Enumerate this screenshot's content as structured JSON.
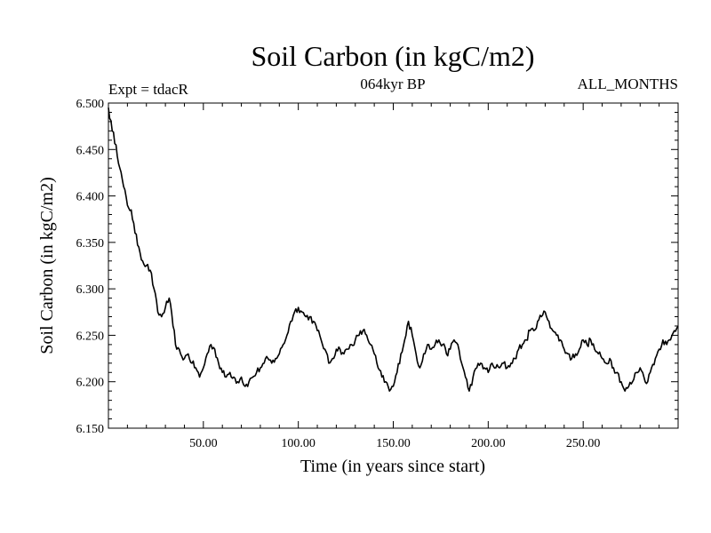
{
  "chart_data": {
    "type": "line",
    "title": "Soil Carbon (in kgC/m2)",
    "subtitle": "064kyr BP",
    "annotation_left": "Expt = tdacR",
    "annotation_right": "ALL_MONTHS",
    "xlabel": "Time (in years since start)",
    "ylabel": "Soil Carbon (in kgC/m2)",
    "xlim": [
      0,
      300
    ],
    "ylim": [
      6.15,
      6.5
    ],
    "xticks": [
      50,
      100,
      150,
      200,
      250
    ],
    "xtick_labels": [
      "50.00",
      "100.00",
      "150.00",
      "200.00",
      "250.00"
    ],
    "yticks": [
      6.15,
      6.2,
      6.25,
      6.3,
      6.35,
      6.4,
      6.45,
      6.5
    ],
    "ytick_labels": [
      "6.150",
      "6.200",
      "6.250",
      "6.300",
      "6.350",
      "6.400",
      "6.450",
      "6.500"
    ],
    "series": [
      {
        "name": "Soil Carbon",
        "color": "#000000",
        "x": [
          0,
          2,
          4,
          6,
          8,
          10,
          12,
          14,
          16,
          18,
          20,
          22,
          24,
          26,
          28,
          30,
          32,
          34,
          36,
          38,
          40,
          42,
          44,
          46,
          48,
          50,
          52,
          54,
          56,
          58,
          60,
          62,
          64,
          66,
          68,
          70,
          72,
          74,
          76,
          78,
          80,
          82,
          84,
          86,
          88,
          90,
          92,
          94,
          96,
          98,
          100,
          102,
          104,
          106,
          108,
          110,
          112,
          114,
          116,
          118,
          120,
          122,
          124,
          126,
          128,
          130,
          132,
          134,
          136,
          138,
          140,
          142,
          144,
          146,
          148,
          150,
          152,
          154,
          156,
          158,
          160,
          162,
          164,
          166,
          168,
          170,
          172,
          174,
          176,
          178,
          180,
          182,
          184,
          186,
          188,
          190,
          192,
          194,
          196,
          198,
          200,
          202,
          204,
          206,
          208,
          210,
          212,
          214,
          216,
          218,
          220,
          222,
          224,
          226,
          228,
          230,
          232,
          234,
          236,
          238,
          240,
          242,
          244,
          246,
          248,
          250,
          252,
          254,
          256,
          258,
          260,
          262,
          264,
          266,
          268,
          270,
          272,
          274,
          276,
          278,
          280,
          282,
          284,
          286,
          288,
          290,
          292,
          294,
          296,
          298,
          300
        ],
        "values": [
          6.495,
          6.47,
          6.455,
          6.43,
          6.41,
          6.39,
          6.385,
          6.36,
          6.345,
          6.33,
          6.325,
          6.32,
          6.3,
          6.275,
          6.27,
          6.28,
          6.29,
          6.26,
          6.235,
          6.23,
          6.225,
          6.23,
          6.22,
          6.215,
          6.205,
          6.215,
          6.23,
          6.24,
          6.235,
          6.22,
          6.21,
          6.205,
          6.21,
          6.205,
          6.2,
          6.205,
          6.195,
          6.2,
          6.205,
          6.21,
          6.215,
          6.22,
          6.225,
          6.22,
          6.225,
          6.23,
          6.24,
          6.25,
          6.265,
          6.275,
          6.28,
          6.275,
          6.27,
          6.27,
          6.265,
          6.255,
          6.245,
          6.235,
          6.22,
          6.225,
          6.235,
          6.235,
          6.23,
          6.235,
          6.24,
          6.245,
          6.25,
          6.255,
          6.25,
          6.24,
          6.23,
          6.215,
          6.205,
          6.2,
          6.19,
          6.195,
          6.21,
          6.23,
          6.245,
          6.265,
          6.25,
          6.23,
          6.215,
          6.23,
          6.24,
          6.235,
          6.24,
          6.245,
          6.24,
          6.23,
          6.235,
          6.245,
          6.24,
          6.22,
          6.205,
          6.19,
          6.205,
          6.215,
          6.22,
          6.215,
          6.21,
          6.22,
          6.215,
          6.215,
          6.22,
          6.215,
          6.22,
          6.225,
          6.235,
          6.24,
          6.245,
          6.255,
          6.255,
          6.265,
          6.27,
          6.275,
          6.265,
          6.255,
          6.25,
          6.245,
          6.235,
          6.23,
          6.225,
          6.23,
          6.235,
          6.245,
          6.24,
          6.245,
          6.235,
          6.23,
          6.225,
          6.22,
          6.225,
          6.215,
          6.21,
          6.2,
          6.19,
          6.195,
          6.2,
          6.21,
          6.215,
          6.205,
          6.2,
          6.215,
          6.225,
          6.235,
          6.245,
          6.24,
          6.245,
          6.255,
          6.26
        ]
      }
    ]
  }
}
